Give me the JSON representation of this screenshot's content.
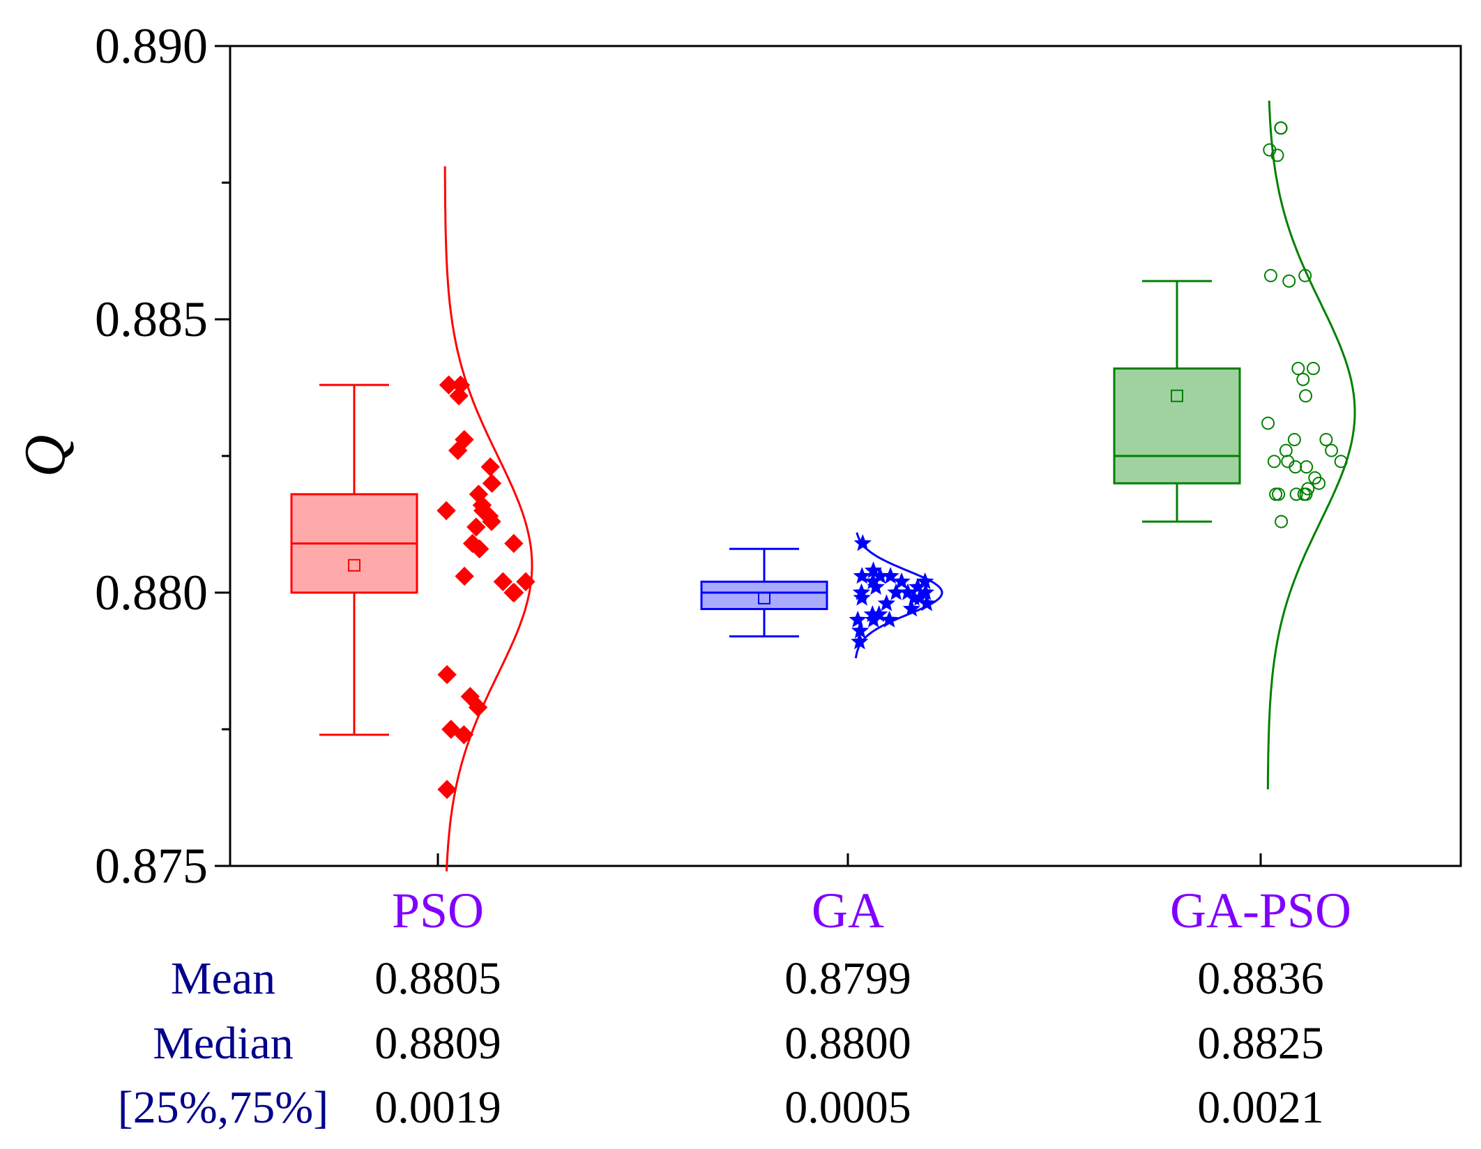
{
  "chart_data": {
    "type": "box",
    "ylabel": "Q",
    "ylim": [
      0.875,
      0.89
    ],
    "yticks": [
      "0.875",
      "0.880",
      "0.885",
      "0.890"
    ],
    "label_color": "#8000ff",
    "stats_label_color": "#00008b",
    "groups": [
      {
        "name": "PSO",
        "color": "#ff0000",
        "fill": "#ffaaaa",
        "marker": "diamond",
        "whisker_low": 0.8774,
        "q1": 0.88,
        "median": 0.8809,
        "q3": 0.8818,
        "whisker_high": 0.8838,
        "mean": 0.8805,
        "dist_mean": 0.8805,
        "dist_sd": 0.002,
        "curve_range": [
          0.8749,
          0.8878
        ],
        "points": [
          0.8838,
          0.8838,
          0.8836,
          0.8828,
          0.8826,
          0.8823,
          0.882,
          0.8818,
          0.8816,
          0.8815,
          0.8815,
          0.8814,
          0.8813,
          0.8812,
          0.8809,
          0.8809,
          0.8808,
          0.8803,
          0.8802,
          0.8802,
          0.88,
          0.88,
          0.8785,
          0.8781,
          0.8779,
          0.8775,
          0.8774,
          0.8764
        ]
      },
      {
        "name": "GA",
        "color": "#0000ff",
        "fill": "#aaaaff",
        "marker": "star",
        "whisker_low": 0.8792,
        "q1": 0.8797,
        "median": 0.88,
        "q3": 0.8802,
        "whisker_high": 0.8808,
        "mean": 0.8799,
        "dist_mean": 0.88,
        "dist_sd": 0.0004,
        "curve_range": [
          0.8788,
          0.8811
        ],
        "points": [
          0.8809,
          0.8804,
          0.8803,
          0.8803,
          0.8803,
          0.8802,
          0.8802,
          0.8802,
          0.8801,
          0.8801,
          0.88,
          0.88,
          0.88,
          0.88,
          0.8799,
          0.8799,
          0.8799,
          0.8798,
          0.8798,
          0.8797,
          0.8796,
          0.8796,
          0.8795,
          0.8795,
          0.8795,
          0.8793,
          0.8791
        ]
      },
      {
        "name": "GA-PSO",
        "color": "#008000",
        "fill": "#a0d2a0",
        "marker": "circle",
        "whisker_low": 0.8813,
        "q1": 0.882,
        "median": 0.8825,
        "q3": 0.8841,
        "whisker_high": 0.8857,
        "mean": 0.8836,
        "dist_mean": 0.8833,
        "dist_sd": 0.002,
        "curve_range": [
          0.8764,
          0.889
        ],
        "points": [
          0.8885,
          0.8885,
          0.8881,
          0.888,
          0.8858,
          0.8858,
          0.8857,
          0.8841,
          0.8841,
          0.8839,
          0.8836,
          0.8831,
          0.8828,
          0.8828,
          0.8826,
          0.8826,
          0.8824,
          0.8824,
          0.8824,
          0.8823,
          0.8823,
          0.8821,
          0.882,
          0.8819,
          0.8818,
          0.8818,
          0.8818,
          0.8818,
          0.8818,
          0.8813
        ]
      }
    ],
    "stats_table": {
      "rows": [
        {
          "label": "Mean",
          "values": [
            "0.8805",
            "0.8799",
            "0.8836"
          ]
        },
        {
          "label": "Median",
          "values": [
            "0.8809",
            "0.8800",
            "0.8825"
          ]
        },
        {
          "label": "[25%,75%]",
          "values": [
            "0.0019",
            "0.0005",
            "0.0021"
          ]
        }
      ]
    }
  }
}
